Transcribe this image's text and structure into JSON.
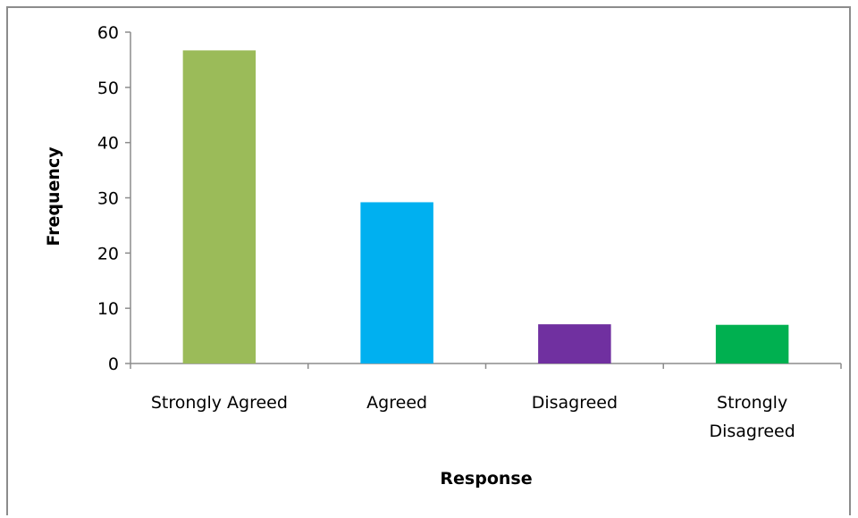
{
  "chart_data": {
    "type": "bar",
    "title": "",
    "xlabel": "Response",
    "ylabel": "Frequency",
    "categories": [
      [
        "Strongly Agreed"
      ],
      [
        "Agreed"
      ],
      [
        "Disagreed"
      ],
      [
        "Strongly",
        "Disagreed"
      ]
    ],
    "values": [
      56.7,
      29.2,
      7.1,
      7.0
    ],
    "colors": [
      "#9bbb59",
      "#00b0f0",
      "#7030a0",
      "#00b050"
    ],
    "ylim": [
      0,
      60
    ],
    "yticks": [
      0,
      10,
      20,
      30,
      40,
      50,
      60
    ],
    "grid": false,
    "legend": "none"
  }
}
